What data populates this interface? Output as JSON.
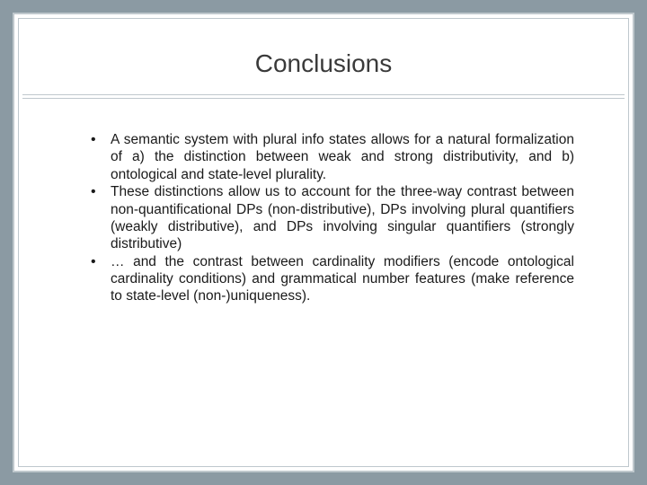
{
  "slide": {
    "title": "Conclusions",
    "bullets": [
      "A semantic system with plural info states allows for a natural formalization of a) the distinction between weak and strong distributivity, and b) ontological and state-level plurality.",
      "These distinctions allow us to account for the three-way contrast between non-quantificational DPs (non-distributive), DPs involving plural quantifiers (weakly distributive), and DPs involving singular quantifiers (strongly distributive)",
      "… and the contrast between cardinality modifiers (encode ontological cardinality conditions) and grammatical number features (make reference to state-level (non-)uniqueness)."
    ]
  },
  "style": {
    "background_color": "#8b9aa3",
    "slide_background": "#ffffff",
    "border_color": "#bfc8cd",
    "title_color": "#3a3a3a",
    "title_fontsize": 28,
    "body_color": "#1a1a1a",
    "body_fontsize": 15.5,
    "text_align": "justify"
  }
}
